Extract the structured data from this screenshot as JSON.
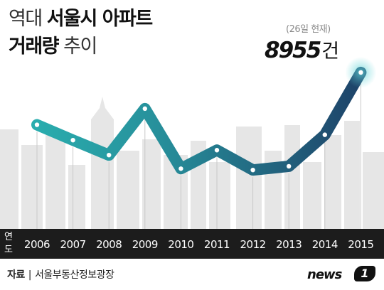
{
  "title": {
    "line1_light": "역대",
    "line1_bold": "서울시 아파트",
    "line2_bold": "거래량",
    "line2_light": "추이"
  },
  "annotation": {
    "sub": "(26일 현재)",
    "value": "8955",
    "unit": "건"
  },
  "axis_label": "연도",
  "source": {
    "label": "자료",
    "text": "서울부동산정보광장"
  },
  "logo": {
    "text": "news",
    "badge": "1"
  },
  "colors": {
    "line_start": "#2ab5b3",
    "line_end": "#1d3a63",
    "skyline": "#e6e6e6",
    "axis_bar": "#1c1c1c",
    "highlight_glow": "#5fd3d6"
  },
  "chart_data": {
    "type": "line",
    "title": "역대 서울시 아파트 거래량 추이",
    "xlabel": "연도",
    "ylabel": "",
    "x": [
      "2006",
      "2007",
      "2008",
      "2009",
      "2010",
      "2011",
      "2012",
      "2013",
      "2014",
      "2015"
    ],
    "series": [
      {
        "values": [
          5450,
          4420,
          3420,
          6530,
          2510,
          3750,
          2420,
          2670,
          4780,
          8955
        ]
      }
    ],
    "annotations": [
      {
        "x": "2015",
        "label": "8955건",
        "note": "(26일 현재)"
      }
    ],
    "ylim": [
      0,
      10000
    ],
    "grid": false,
    "y_axis_visible": false
  }
}
